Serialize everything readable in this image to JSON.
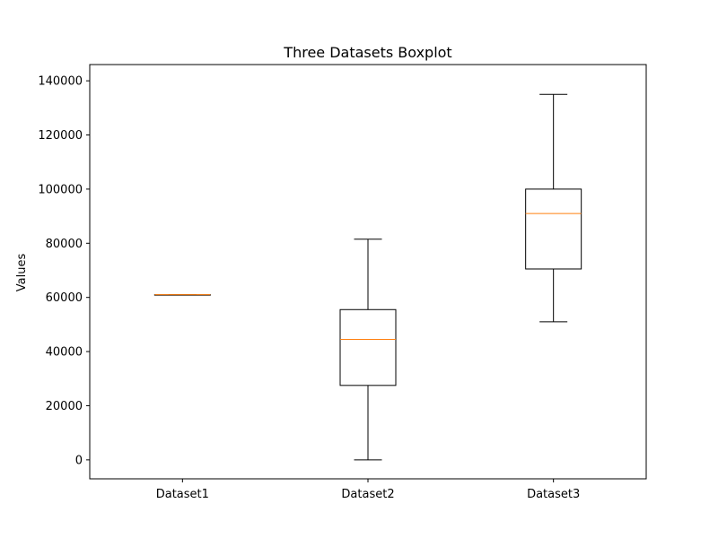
{
  "chart_data": {
    "type": "box",
    "title": "Three Datasets Boxplot",
    "xlabel": "",
    "ylabel": "Values",
    "ylim": [
      -7000,
      146000
    ],
    "yticks": [
      0,
      20000,
      40000,
      60000,
      80000,
      100000,
      120000,
      140000
    ],
    "ytick_labels": [
      "0",
      "20000",
      "40000",
      "60000",
      "80000",
      "100000",
      "120000",
      "140000"
    ],
    "grid": false,
    "categories": [
      "Dataset1",
      "Dataset2",
      "Dataset3"
    ],
    "boxes": [
      {
        "name": "Dataset1",
        "whisker_low": 61000,
        "q1": 61000,
        "median": 61000,
        "q3": 61000,
        "whisker_high": 61000
      },
      {
        "name": "Dataset2",
        "whisker_low": 0,
        "q1": 27500,
        "median": 44500,
        "q3": 55500,
        "whisker_high": 81500
      },
      {
        "name": "Dataset3",
        "whisker_low": 51000,
        "q1": 70500,
        "median": 91000,
        "q3": 100000,
        "whisker_high": 135000
      }
    ],
    "colors": {
      "box": "#000000",
      "median": "#ff7f0e"
    }
  }
}
